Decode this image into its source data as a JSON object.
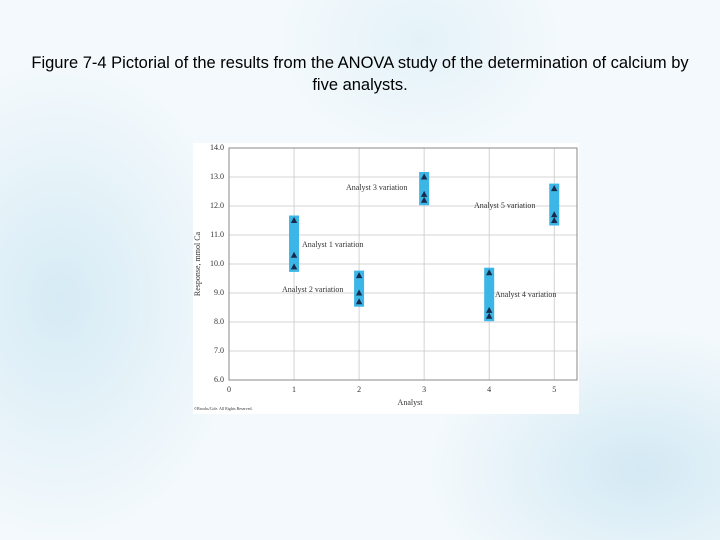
{
  "slide_title": "Figure 7-4 Pictorial of the results from the ANOVA study of the determination of calcium by five analysts.",
  "chart_data": {
    "type": "scatter",
    "xlabel": "Analyst",
    "ylabel": "Response, mmol Ca",
    "credit": "©Brooks/Cole. All Rights Reserved.",
    "xlim": [
      0,
      5.35
    ],
    "ylim": [
      6,
      14
    ],
    "xticks": [
      0,
      1,
      2,
      3,
      4,
      5
    ],
    "yticks": [
      {
        "value": 6,
        "label": "6.0"
      },
      {
        "value": 7,
        "label": "7.0"
      },
      {
        "value": 8,
        "label": "8.0"
      },
      {
        "value": 9,
        "label": "9.0"
      },
      {
        "value": 10,
        "label": "10.0"
      },
      {
        "value": 11,
        "label": "11.0"
      },
      {
        "value": 12,
        "label": "12.0"
      },
      {
        "value": 13,
        "label": "13.0"
      },
      {
        "value": 14,
        "label": "14.0"
      }
    ],
    "grid": true,
    "marker_color": "#1a2a4a",
    "range_color": "#3bb6e6",
    "series": [
      {
        "x": [
          1,
          1,
          1
        ],
        "values": [
          11.5,
          10.3,
          9.9
        ]
      },
      {
        "x": [
          2,
          2,
          2
        ],
        "values": [
          9.6,
          9.0,
          8.7
        ]
      },
      {
        "x": [
          3,
          3,
          3
        ],
        "values": [
          13.0,
          12.4,
          12.2
        ]
      },
      {
        "x": [
          4,
          4,
          4
        ],
        "values": [
          9.7,
          8.4,
          8.2
        ]
      },
      {
        "x": [
          5,
          5,
          5
        ],
        "values": [
          12.6,
          11.7,
          11.5
        ]
      }
    ],
    "annotations": [
      "Analyst 1 variation",
      "Analyst 2 variation",
      "Analyst 3 variation",
      "Analyst 4 variation",
      "Analyst 5 variation"
    ]
  }
}
